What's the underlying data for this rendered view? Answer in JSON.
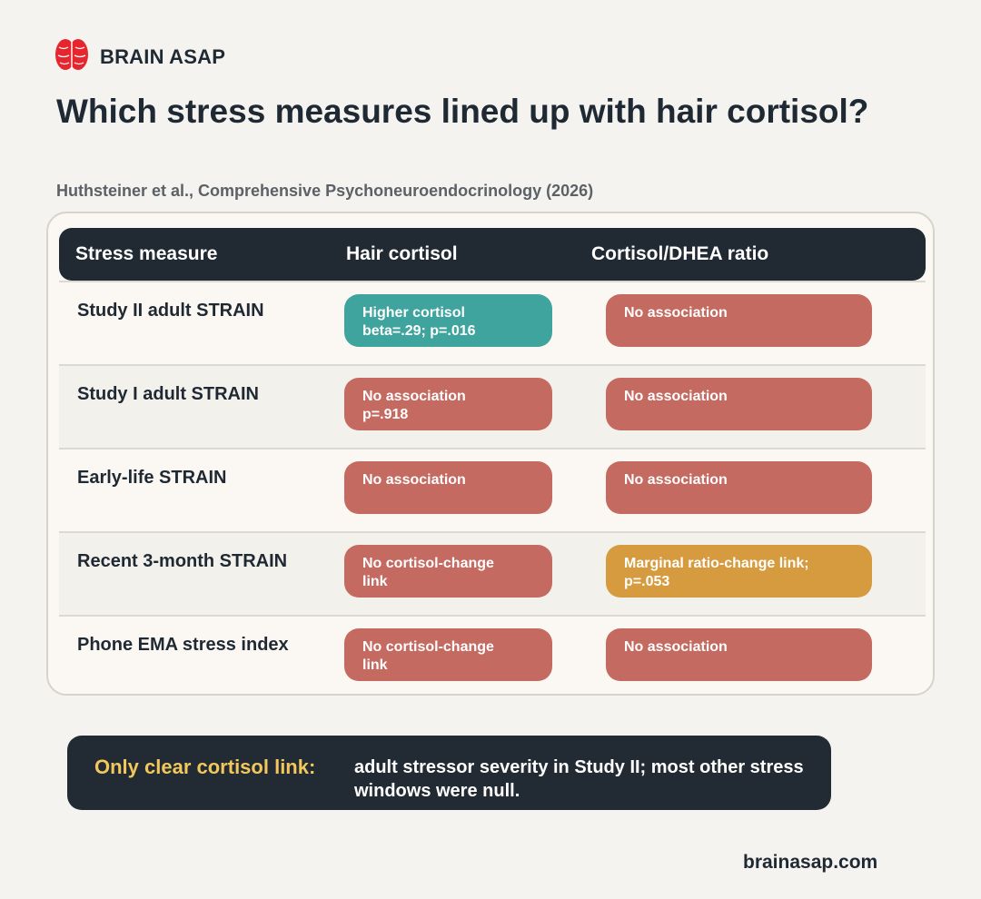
{
  "brand": {
    "name": "BRAIN ASAP",
    "icon": "brain-icon",
    "icon_color": "#e5262f"
  },
  "header": {
    "title": "Which stress measures lined up with hair cortisol?",
    "subtitle": "Huthsteiner et al., Comprehensive Psychoneuroendocrinology (2026)"
  },
  "table": {
    "columns": [
      "Stress measure",
      "Hair cortisol",
      "Cortisol/DHEA ratio"
    ],
    "rows": [
      {
        "measure": "Study II adult STRAIN",
        "hair_cortisol": "Higher cortisol\nbeta=.29; p=.016",
        "hair_status": "positive",
        "ratio": "No association",
        "ratio_status": "null"
      },
      {
        "measure": "Study I adult STRAIN",
        "hair_cortisol": "No association\np=.918",
        "hair_status": "null",
        "ratio": "No association",
        "ratio_status": "null"
      },
      {
        "measure": "Early-life STRAIN",
        "hair_cortisol": "No association",
        "hair_status": "null",
        "ratio": "No association",
        "ratio_status": "null"
      },
      {
        "measure": "Recent 3-month STRAIN",
        "hair_cortisol": "No cortisol-change\nlink",
        "hair_status": "null",
        "ratio": "Marginal ratio-change link;\np=.053",
        "ratio_status": "marginal"
      },
      {
        "measure": "Phone EMA stress index",
        "hair_cortisol": "No cortisol-change\nlink",
        "hair_status": "null",
        "ratio": "No association",
        "ratio_status": "null"
      }
    ]
  },
  "status_colors": {
    "positive": "#3fa39e",
    "null": "#c56a61",
    "marginal": "#d79b3f"
  },
  "summary": {
    "label": "Only clear cortisol link:",
    "text": "adult stressor severity in Study II; most other stress windows were null."
  },
  "footer": {
    "site": "brainasap.com"
  }
}
